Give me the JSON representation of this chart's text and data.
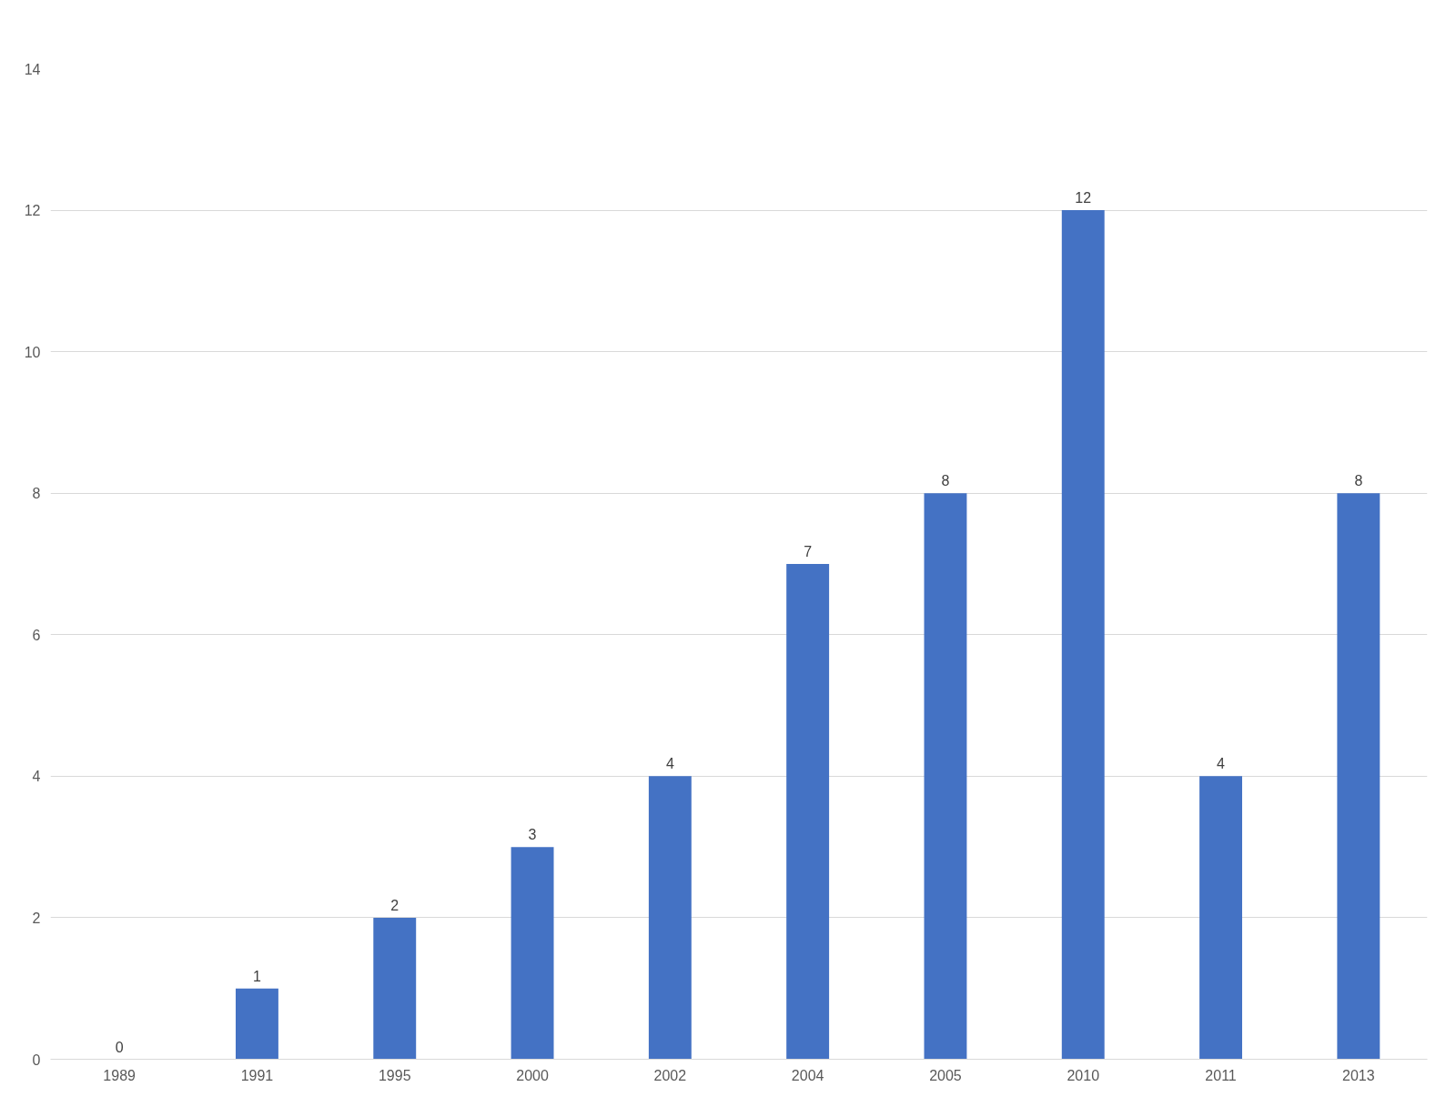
{
  "chart_data": {
    "type": "bar",
    "categories": [
      "1989",
      "1991",
      "1995",
      "2000",
      "2002",
      "2004",
      "2005",
      "2010",
      "2011",
      "2013"
    ],
    "values": [
      0,
      1,
      2,
      3,
      4,
      7,
      8,
      12,
      4,
      8
    ],
    "color": "#4472c4",
    "ylim": [
      0,
      14
    ],
    "yticks": [
      0,
      2,
      4,
      6,
      8,
      10,
      12,
      14
    ],
    "grid": "y",
    "data_labels": true
  }
}
